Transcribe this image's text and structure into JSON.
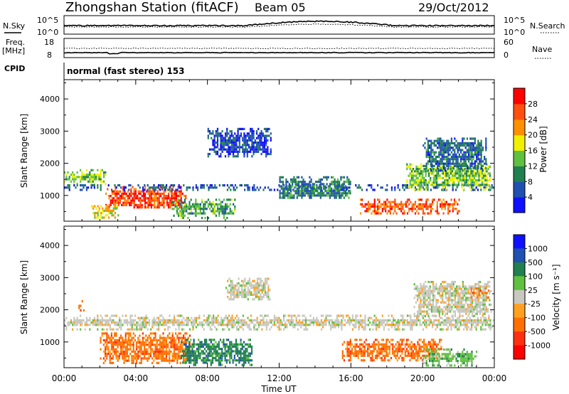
{
  "header": {
    "station": "Zhongshan Station (fitACF)",
    "beam": "Beam 05",
    "date": "29/Oct/2012"
  },
  "aux_panels": {
    "nsky_label": "N.Sky",
    "nsearch_label": "N.Search",
    "nsky_ticks": [
      "10^5",
      "10^0"
    ],
    "nsearch_ticks": [
      "10^5",
      "10^0"
    ],
    "freq_label_1": "Freq.",
    "freq_label_2": "[MHz]",
    "freq_ticks": [
      "18",
      "8"
    ],
    "nave_label": "Nave",
    "nave_ticks": [
      "60",
      "0"
    ],
    "cpid_label": "CPID",
    "cpid_value": "normal (fast stereo) 153",
    "line_colors": {
      "sky": "#000000",
      "search": "#000000"
    }
  },
  "chart_data": [
    {
      "type": "heatmap",
      "name": "power",
      "ylabel": "Slant Range [km]",
      "yticks": [
        1000,
        2000,
        3000,
        4000
      ],
      "ylim": [
        200,
        4600
      ],
      "xlim": [
        0,
        24
      ],
      "colorbar": {
        "label": "Power [dB]",
        "ticks": [
          "4",
          "8",
          "12",
          "16",
          "20",
          "24",
          "28"
        ],
        "colors": [
          "#1010ff",
          "#2050b0",
          "#208050",
          "#60c040",
          "#f0f000",
          "#ff9000",
          "#ff5010",
          "#ff0000"
        ]
      },
      "features": [
        {
          "t0": 0.0,
          "t1": 2.3,
          "r0": 1380,
          "r1": 1820,
          "level": 0.45
        },
        {
          "t0": 2.3,
          "t1": 6.8,
          "r0": 600,
          "r1": 1300,
          "level": 0.9
        },
        {
          "t0": 1.5,
          "t1": 3.0,
          "r0": 300,
          "r1": 700,
          "level": 0.6
        },
        {
          "t0": 0.0,
          "t1": 24.0,
          "r0": 1150,
          "r1": 1350,
          "level": 0.15
        },
        {
          "t0": 6.0,
          "t1": 9.5,
          "r0": 300,
          "r1": 900,
          "level": 0.35
        },
        {
          "t0": 16.5,
          "t1": 22.0,
          "r0": 450,
          "r1": 900,
          "level": 0.85
        },
        {
          "t0": 19.0,
          "t1": 23.8,
          "r0": 1200,
          "r1": 2000,
          "level": 0.45
        },
        {
          "t0": 20.0,
          "t1": 23.5,
          "r0": 1800,
          "r1": 2800,
          "level": 0.2
        },
        {
          "t0": 8.0,
          "t1": 11.5,
          "r0": 2200,
          "r1": 3100,
          "level": 0.1
        },
        {
          "t0": 12.0,
          "t1": 16.0,
          "r0": 900,
          "r1": 1600,
          "level": 0.25
        }
      ]
    },
    {
      "type": "heatmap",
      "name": "velocity",
      "ylabel": "Slant Range [km]",
      "yticks": [
        1000,
        2000,
        3000,
        4000
      ],
      "ylim": [
        200,
        4600
      ],
      "xlim": [
        0,
        24
      ],
      "xticks": [
        "00:00",
        "04:00",
        "08:00",
        "12:00",
        "16:00",
        "20:00",
        "00:00"
      ],
      "xlabel": "Time UT",
      "colorbar": {
        "label": "Velocity [m s⁻¹]",
        "ticks": [
          "1000",
          "500",
          "100",
          "25",
          "-25",
          "-100",
          "-500",
          "-1000"
        ],
        "colors": [
          "#1010ff",
          "#2050b0",
          "#208050",
          "#60c040",
          "#c8c8c0",
          "#ffa020",
          "#ff7000",
          "#ff3010",
          "#ff0000"
        ]
      },
      "features": [
        {
          "t0": 0.0,
          "t1": 24.0,
          "r0": 1380,
          "r1": 1850,
          "level": 4
        },
        {
          "t0": 2.0,
          "t1": 7.0,
          "r0": 350,
          "r1": 1300,
          "level": 6
        },
        {
          "t0": 6.5,
          "t1": 10.5,
          "r0": 300,
          "r1": 1100,
          "level": 2
        },
        {
          "t0": 15.5,
          "t1": 21.0,
          "r0": 450,
          "r1": 1100,
          "level": 6
        },
        {
          "t0": 19.5,
          "t1": 23.8,
          "r0": 1800,
          "r1": 2900,
          "level": 4
        },
        {
          "t0": 20.0,
          "t1": 23.0,
          "r0": 300,
          "r1": 800,
          "level": 3
        },
        {
          "t0": 22.5,
          "t1": 23.8,
          "r0": 2400,
          "r1": 2700,
          "level": 6
        },
        {
          "t0": 9.0,
          "t1": 11.5,
          "r0": 2300,
          "r1": 3000,
          "level": 4
        },
        {
          "t0": 0.8,
          "t1": 1.1,
          "r0": 2000,
          "r1": 2300,
          "level": 6
        }
      ]
    }
  ]
}
